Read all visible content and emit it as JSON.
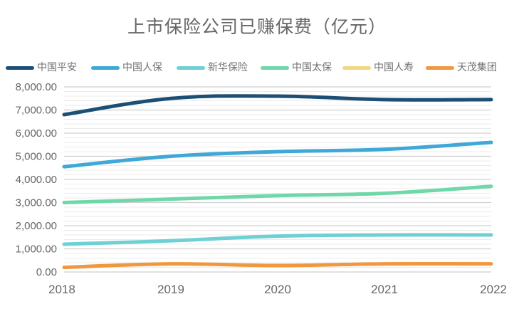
{
  "chart_data": {
    "type": "line",
    "title": "上市保险公司已赚保费（亿元）",
    "xlabel": "",
    "ylabel": "",
    "x": [
      "2018",
      "2019",
      "2020",
      "2021",
      "2022"
    ],
    "ylim": [
      0,
      8000
    ],
    "yticks": [
      "0.00",
      "1,000.00",
      "2,000.00",
      "3,000.00",
      "4,000.00",
      "5,000.00",
      "6,000.00",
      "7,000.00",
      "8,000.00"
    ],
    "grid": true,
    "legend_position": "top",
    "series": [
      {
        "name": "中国平安",
        "color": "#1c4f75",
        "values": [
          6800,
          7500,
          7600,
          7450,
          7450
        ]
      },
      {
        "name": "中国人保",
        "color": "#3ea8d6",
        "values": [
          4550,
          5000,
          5200,
          5300,
          5600
        ]
      },
      {
        "name": "新华保险",
        "color": "#6fd0d4",
        "values": [
          1200,
          1350,
          1550,
          1600,
          1600
        ]
      },
      {
        "name": "中国太保",
        "color": "#6fd8a8",
        "values": [
          3000,
          3150,
          3300,
          3400,
          3700
        ]
      },
      {
        "name": "中国人寿",
        "color": "#f3d680",
        "values": [
          null,
          null,
          null,
          null,
          null
        ]
      },
      {
        "name": "天茂集团",
        "color": "#ef9840",
        "values": [
          200,
          350,
          280,
          350,
          350
        ]
      }
    ]
  }
}
